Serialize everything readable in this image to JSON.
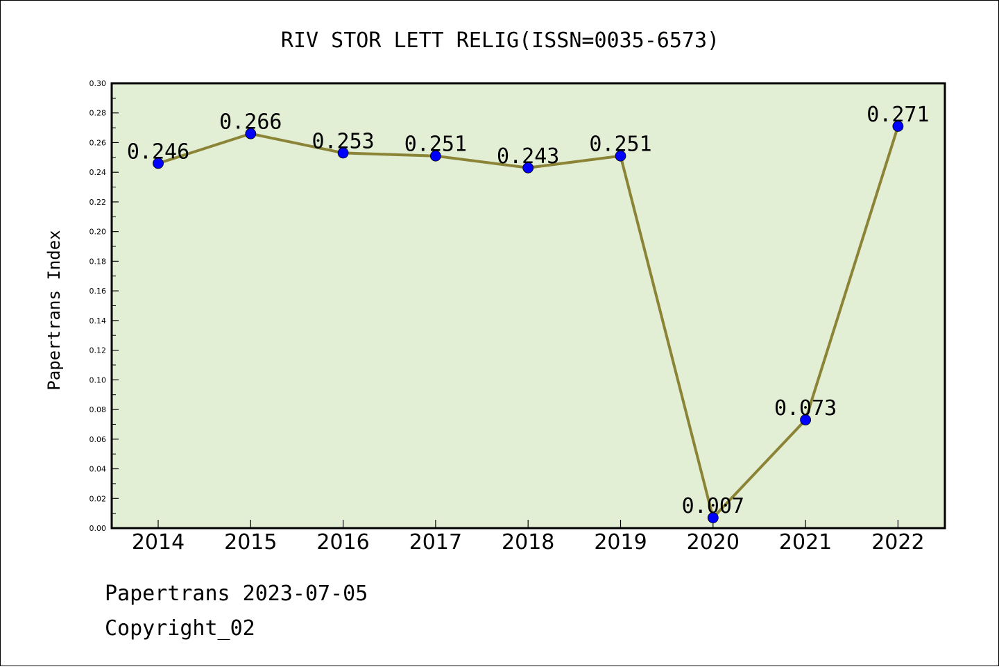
{
  "chart_data": {
    "type": "line",
    "title": "RIV STOR LETT RELIG(ISSN=0035-6573)",
    "xlabel": "",
    "ylabel": "Papertrans Index",
    "categories": [
      "2014",
      "2015",
      "2016",
      "2017",
      "2018",
      "2019",
      "2020",
      "2021",
      "2022"
    ],
    "series": [
      {
        "values": [
          0.246,
          0.266,
          0.253,
          0.251,
          0.243,
          0.251,
          0.007,
          0.073,
          0.271
        ]
      }
    ],
    "data_labels": [
      "0.246",
      "0.266",
      "0.253",
      "0.251",
      "0.243",
      "0.251",
      "0.007",
      "0.073",
      "0.271"
    ],
    "ylim": [
      0,
      0.3
    ],
    "yticks": [
      "0.00",
      "0.02",
      "0.04",
      "0.06",
      "0.08",
      "0.10",
      "0.12",
      "0.14",
      "0.16",
      "0.18",
      "0.20",
      "0.22",
      "0.24",
      "0.26",
      "0.28",
      "0.30"
    ],
    "grid": false,
    "colors": {
      "plot_background": "#e2efd5",
      "line": "#8b8436",
      "marker": "#0000ff"
    }
  },
  "footer": {
    "line1": "Papertrans 2023-07-05",
    "line2": "Copyright_02"
  }
}
